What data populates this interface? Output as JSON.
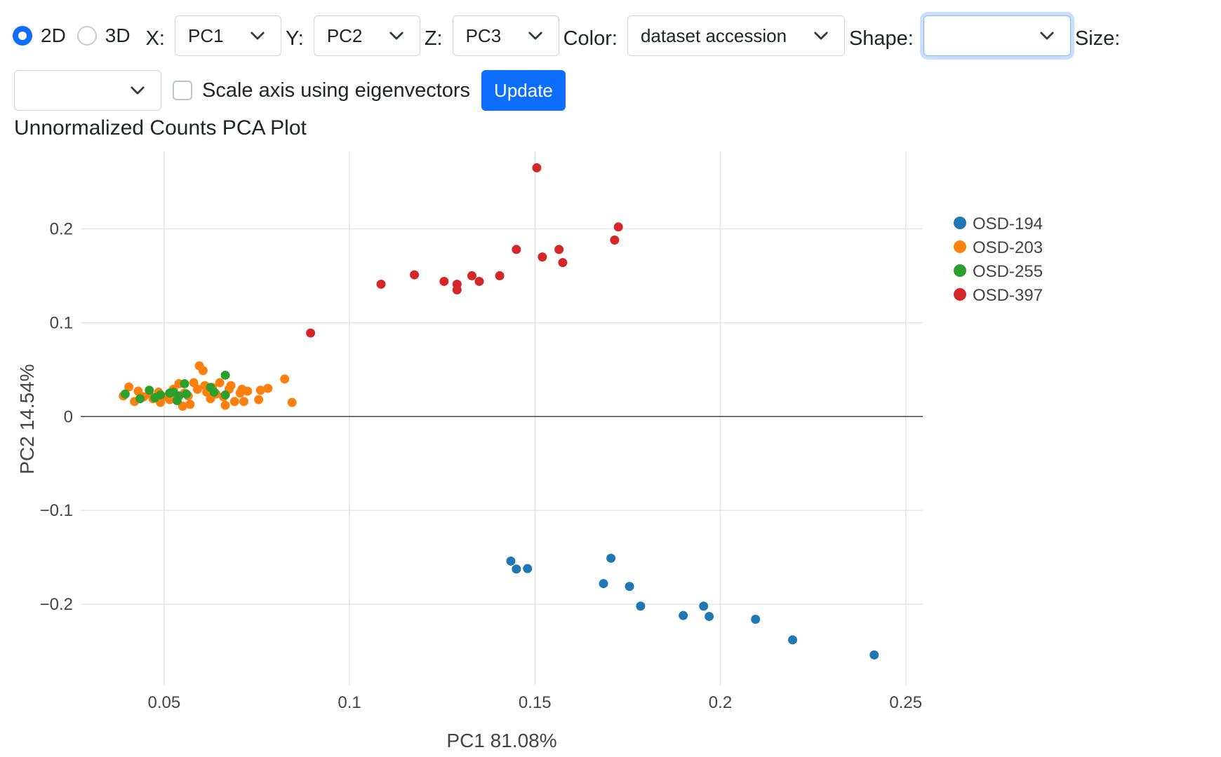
{
  "controls": {
    "mode": {
      "options": [
        {
          "label": "2D",
          "checked": true
        },
        {
          "label": "3D",
          "checked": false
        }
      ]
    },
    "x": {
      "label": "X:",
      "value": "PC1"
    },
    "y": {
      "label": "Y:",
      "value": "PC2"
    },
    "z": {
      "label": "Z:",
      "value": "PC3"
    },
    "color": {
      "label": "Color:",
      "value": "dataset accession"
    },
    "shape": {
      "label": "Shape:",
      "value": ""
    },
    "size": {
      "label": "Size:",
      "value": ""
    },
    "scale_axis": {
      "label": "Scale axis using eigenvectors",
      "checked": false
    },
    "update_button": "Update"
  },
  "plot_title": "Unnormalized Counts PCA Plot",
  "colors": {
    "accent": "#0d6efd"
  },
  "chart_data": {
    "type": "scatter",
    "title": "Unnormalized Counts PCA Plot",
    "xlabel": "PC1 81.08%",
    "ylabel": "PC2 14.54%",
    "xlim": [
      0.0275,
      0.2546
    ],
    "ylim": [
      -0.2866,
      0.2825
    ],
    "x_ticks": [
      0.05,
      0.1,
      0.15,
      0.2,
      0.25
    ],
    "x_tick_labels": [
      "0.05",
      "0.1",
      "0.15",
      "0.2",
      "0.25"
    ],
    "y_ticks": [
      -0.2,
      -0.1,
      0,
      0.1,
      0.2
    ],
    "y_tick_labels": [
      "−0.2",
      "−0.1",
      "0",
      "0.1",
      "0.2"
    ],
    "grid": true,
    "legend_position": "top-right",
    "series": [
      {
        "name": "OSD-194",
        "color": "#1f77b4",
        "points": [
          [
            0.1435,
            -0.154
          ],
          [
            0.145,
            -0.1625
          ],
          [
            0.148,
            -0.162
          ],
          [
            0.1685,
            -0.178
          ],
          [
            0.1705,
            -0.151
          ],
          [
            0.1755,
            -0.181
          ],
          [
            0.1785,
            -0.202
          ],
          [
            0.19,
            -0.212
          ],
          [
            0.1955,
            -0.202
          ],
          [
            0.197,
            -0.213
          ],
          [
            0.2095,
            -0.216
          ],
          [
            0.2195,
            -0.238
          ],
          [
            0.2415,
            -0.254
          ]
        ]
      },
      {
        "name": "OSD-203",
        "color": "#ff7f0e",
        "points": [
          [
            0.039,
            0.022
          ],
          [
            0.0405,
            0.0315
          ],
          [
            0.042,
            0.016
          ],
          [
            0.043,
            0.027
          ],
          [
            0.0445,
            0.021
          ],
          [
            0.046,
            0.024
          ],
          [
            0.047,
            0.019
          ],
          [
            0.0485,
            0.026
          ],
          [
            0.049,
            0.015
          ],
          [
            0.0505,
            0.021
          ],
          [
            0.0515,
            0.018
          ],
          [
            0.0525,
            0.029
          ],
          [
            0.053,
            0.023
          ],
          [
            0.054,
            0.035
          ],
          [
            0.055,
            0.011
          ],
          [
            0.0555,
            0.025
          ],
          [
            0.0565,
            0.022
          ],
          [
            0.057,
            0.013
          ],
          [
            0.058,
            0.036
          ],
          [
            0.059,
            0.029
          ],
          [
            0.0595,
            0.054
          ],
          [
            0.0605,
            0.049
          ],
          [
            0.061,
            0.033
          ],
          [
            0.0615,
            0.026
          ],
          [
            0.0625,
            0.019
          ],
          [
            0.063,
            0.031
          ],
          [
            0.064,
            0.024
          ],
          [
            0.065,
            0.036
          ],
          [
            0.066,
            0.021
          ],
          [
            0.0665,
            0.012
          ],
          [
            0.0675,
            0.029
          ],
          [
            0.068,
            0.033
          ],
          [
            0.069,
            0.016
          ],
          [
            0.0705,
            0.025
          ],
          [
            0.071,
            0.029
          ],
          [
            0.0715,
            0.016
          ],
          [
            0.0725,
            0.027
          ],
          [
            0.0755,
            0.018
          ],
          [
            0.076,
            0.028
          ],
          [
            0.078,
            0.03
          ],
          [
            0.0825,
            0.04
          ],
          [
            0.0845,
            0.015
          ]
        ]
      },
      {
        "name": "OSD-255",
        "color": "#2ca02c",
        "points": [
          [
            0.0395,
            0.024
          ],
          [
            0.0435,
            0.019
          ],
          [
            0.046,
            0.028
          ],
          [
            0.0475,
            0.02
          ],
          [
            0.049,
            0.023
          ],
          [
            0.0515,
            0.025
          ],
          [
            0.0525,
            0.026
          ],
          [
            0.0535,
            0.017
          ],
          [
            0.054,
            0.022
          ],
          [
            0.0555,
            0.035
          ],
          [
            0.056,
            0.024
          ],
          [
            0.0625,
            0.031
          ],
          [
            0.0635,
            0.026
          ],
          [
            0.0665,
            0.044
          ],
          [
            0.0665,
            0.023
          ]
        ]
      },
      {
        "name": "OSD-397",
        "color": "#d62728",
        "points": [
          [
            0.0895,
            0.089
          ],
          [
            0.1085,
            0.141
          ],
          [
            0.1175,
            0.151
          ],
          [
            0.1255,
            0.144
          ],
          [
            0.129,
            0.141
          ],
          [
            0.129,
            0.135
          ],
          [
            0.133,
            0.15
          ],
          [
            0.135,
            0.144
          ],
          [
            0.1405,
            0.15
          ],
          [
            0.145,
            0.178
          ],
          [
            0.1505,
            0.265
          ],
          [
            0.152,
            0.17
          ],
          [
            0.1565,
            0.178
          ],
          [
            0.1575,
            0.164
          ],
          [
            0.1715,
            0.188
          ],
          [
            0.1725,
            0.202
          ]
        ]
      }
    ]
  }
}
